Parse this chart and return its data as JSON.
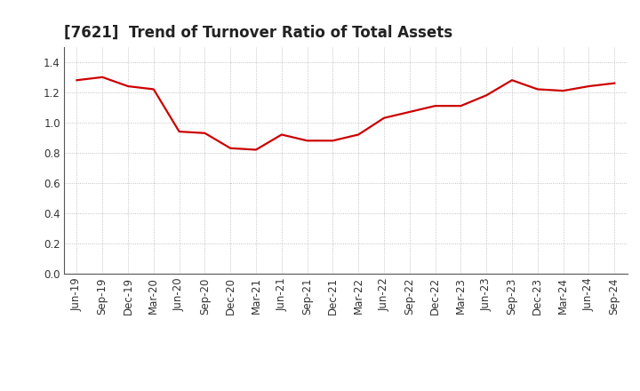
{
  "title": "[7621]  Trend of Turnover Ratio of Total Assets",
  "x_labels": [
    "Jun-19",
    "Sep-19",
    "Dec-19",
    "Mar-20",
    "Jun-20",
    "Sep-20",
    "Dec-20",
    "Mar-21",
    "Jun-21",
    "Sep-21",
    "Dec-21",
    "Mar-22",
    "Jun-22",
    "Sep-22",
    "Dec-22",
    "Mar-23",
    "Jun-23",
    "Sep-23",
    "Dec-23",
    "Mar-24",
    "Jun-24",
    "Sep-24"
  ],
  "y_values": [
    1.28,
    1.3,
    1.24,
    1.22,
    0.94,
    0.93,
    0.83,
    0.82,
    0.92,
    0.88,
    0.88,
    0.92,
    1.03,
    1.07,
    1.11,
    1.11,
    1.18,
    1.28,
    1.22,
    1.21,
    1.24,
    1.26
  ],
  "line_color": "#cc0000",
  "line_width": 1.6,
  "ylim": [
    0.0,
    1.5
  ],
  "yticks": [
    0.0,
    0.2,
    0.4,
    0.6,
    0.8,
    1.0,
    1.2,
    1.4
  ],
  "grid_color": "#aaaaaa",
  "background_color": "#ffffff",
  "title_fontsize": 12,
  "tick_fontsize": 8.5
}
